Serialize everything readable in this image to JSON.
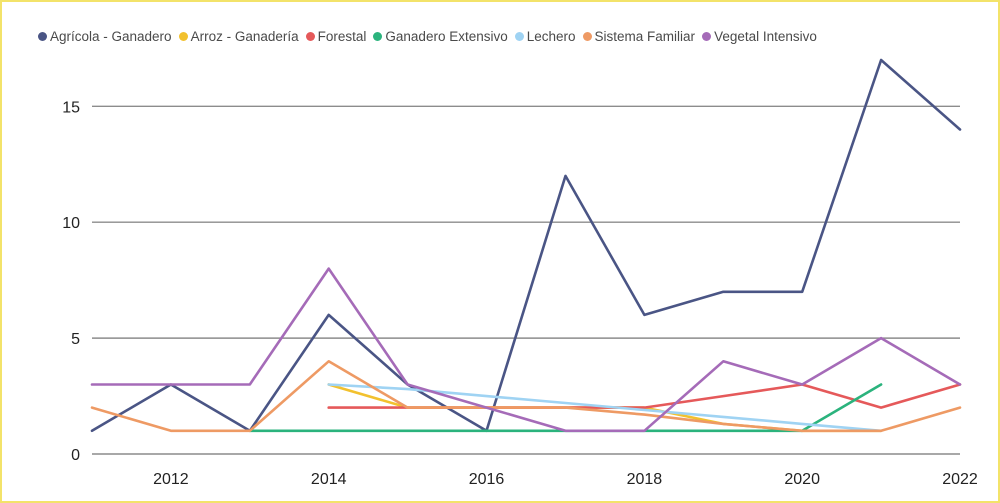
{
  "chart_data": {
    "type": "line",
    "title": "",
    "xlabel": "",
    "ylabel": "",
    "x": [
      2011,
      2012,
      2013,
      2014,
      2015,
      2016,
      2017,
      2018,
      2019,
      2020,
      2021,
      2022
    ],
    "xticks": [
      2012,
      2014,
      2016,
      2018,
      2020,
      2022
    ],
    "yticks": [
      0,
      5,
      10,
      15
    ],
    "xlim": [
      2011,
      2022
    ],
    "ylim": [
      0,
      17
    ],
    "grid": "horizontal",
    "legend_position": "top",
    "series": [
      {
        "name": "Agrícola - Ganadero",
        "color": "#4a5585",
        "x": [
          2011,
          2012,
          2013,
          2014,
          2015,
          2016,
          2017,
          2018,
          2019,
          2020,
          2021,
          2022
        ],
        "values": [
          1,
          3,
          1,
          6,
          3,
          1,
          12,
          6,
          7,
          7,
          17,
          14
        ]
      },
      {
        "name": "Arroz - Ganadería",
        "color": "#f2c12e",
        "x": [
          2014,
          2015,
          2016,
          2017,
          2018,
          2019,
          2020,
          2021
        ],
        "values": [
          3,
          2,
          2,
          2,
          2,
          1.3,
          1,
          1
        ]
      },
      {
        "name": "Forestal",
        "color": "#e5595a",
        "x": [
          2014,
          2015,
          2016,
          2017,
          2018,
          2019,
          2020,
          2021,
          2022
        ],
        "values": [
          2,
          2,
          2,
          2,
          2,
          2.5,
          3,
          2,
          3
        ]
      },
      {
        "name": "Ganadero Extensivo",
        "color": "#2bb37d",
        "x": [
          2013,
          2014,
          2015,
          2016,
          2017,
          2018,
          2019,
          2020,
          2021
        ],
        "values": [
          1,
          1,
          1,
          1,
          1,
          1,
          1,
          1,
          3
        ]
      },
      {
        "name": "Lechero",
        "color": "#9fd3f3",
        "x": [
          2014,
          2015,
          2016,
          2017,
          2018,
          2019,
          2020,
          2021
        ],
        "values": [
          3,
          2.8,
          2.5,
          2.2,
          1.9,
          1.6,
          1.3,
          1
        ]
      },
      {
        "name": "Sistema Familiar",
        "color": "#ee9a64",
        "x": [
          2011,
          2012,
          2013,
          2014,
          2015,
          2016,
          2017,
          2018,
          2019,
          2020,
          2021,
          2022
        ],
        "values": [
          2,
          1,
          1,
          4,
          2,
          2,
          2,
          1.7,
          1.3,
          1,
          1,
          2
        ]
      },
      {
        "name": "Vegetal Intensivo",
        "color": "#a56bb8",
        "x": [
          2011,
          2012,
          2013,
          2014,
          2015,
          2016,
          2017,
          2018,
          2019,
          2020,
          2021,
          2022
        ],
        "values": [
          3,
          3,
          3,
          8,
          3,
          2,
          1,
          1,
          4,
          3,
          5,
          3
        ]
      }
    ]
  }
}
